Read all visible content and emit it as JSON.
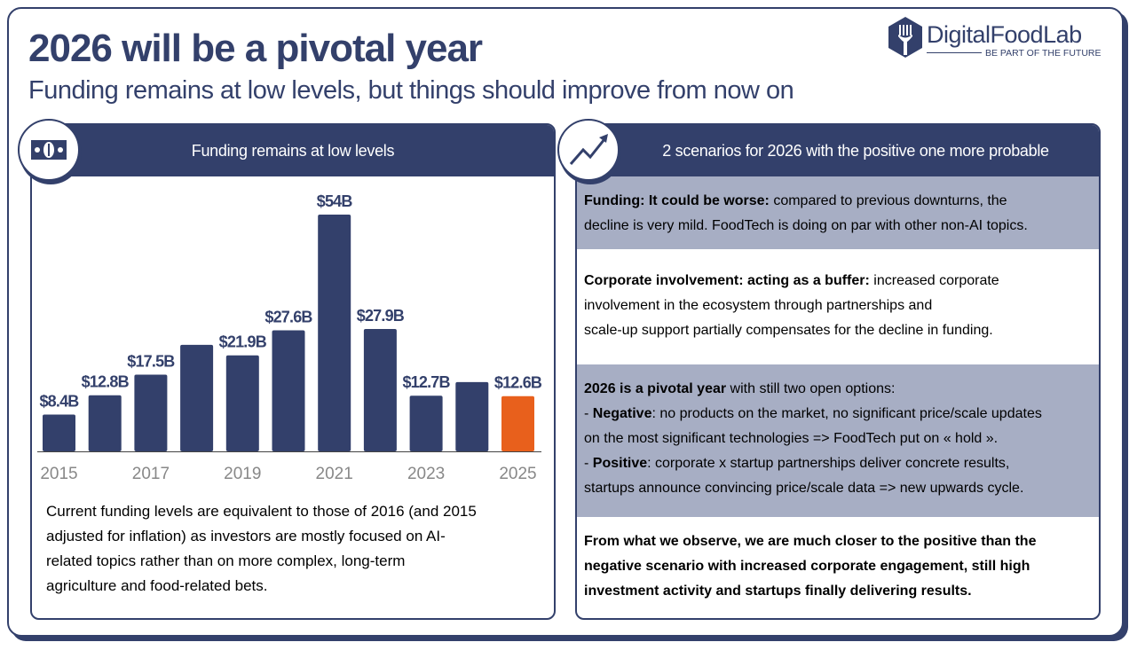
{
  "header": {
    "title": "2026 will be a pivotal year",
    "subtitle": "Funding remains at low levels, but things should improve from now on"
  },
  "logo": {
    "name": "DigitalFoodLab",
    "tagline": "BE PART OF THE FUTURE"
  },
  "colors": {
    "navy": "#33406b",
    "highlight": "#e8601c",
    "band": "#a7aec4"
  },
  "left_panel": {
    "icon": "money-bill-icon",
    "title": "Funding remains at low levels",
    "description_lines": [
      "Current funding levels are equivalent to those of 2016 (and 2015",
      "adjusted for inflation) as investors are mostly focused on AI-",
      "related topics rather than on more complex, long-term",
      "agriculture and food-related bets."
    ]
  },
  "chart_data": {
    "type": "bar",
    "title": "",
    "xlabel": "",
    "ylabel": "",
    "categories": [
      "2015",
      "2016",
      "2017",
      "2018",
      "2019",
      "2020",
      "2021",
      "2022",
      "2023",
      "2024",
      "2025"
    ],
    "tick_labels": [
      "2015",
      "",
      "2017",
      "",
      "2019",
      "",
      "2021",
      "",
      "2023",
      "",
      "2025"
    ],
    "values": [
      8.4,
      12.8,
      17.5,
      24.3,
      21.9,
      27.6,
      54,
      27.9,
      12.7,
      15.8,
      12.6
    ],
    "data_labels": [
      "$8.4B",
      "$12.8B",
      "$17.5B",
      "",
      "$21.9B",
      "$27.6B",
      "$54B",
      "$27.9B",
      "$12.7B",
      "",
      "$12.6B"
    ],
    "highlight_index": 10,
    "ylim": [
      0,
      60
    ],
    "grid": false
  },
  "right_panel": {
    "icon": "trend-up-icon",
    "title": "2 scenarios for 2026 with the positive one more probable",
    "sections": [
      {
        "style": "gray",
        "lines": [
          [
            {
              "b": true,
              "t": "Funding: It could be worse:"
            },
            {
              "b": false,
              "t": " compared to previous downturns, the"
            }
          ],
          [
            {
              "b": false,
              "t": "decline is very mild. FoodTech is doing on par with other non-AI topics."
            }
          ]
        ]
      },
      {
        "style": "white",
        "lines": [
          [
            {
              "b": true,
              "t": "Corporate involvement: acting as a buffer:"
            },
            {
              "b": false,
              "t": " increased corporate"
            }
          ],
          [
            {
              "b": false,
              "t": "involvement in the ecosystem through partnerships and"
            }
          ],
          [
            {
              "b": false,
              "t": "scale-up support partially compensates for the decline in funding."
            }
          ]
        ]
      },
      {
        "style": "gray",
        "lines": [
          [
            {
              "b": true,
              "t": "2026 is a pivotal year"
            },
            {
              "b": false,
              "t": " with still two open options:"
            }
          ],
          [
            {
              "b": false,
              "t": "- "
            },
            {
              "b": true,
              "t": "Negative"
            },
            {
              "b": false,
              "t": ": no products on the market, no significant price/scale updates"
            }
          ],
          [
            {
              "b": false,
              "t": "on the most significant technologies => FoodTech put on « hold »."
            }
          ],
          [
            {
              "b": false,
              "t": "- "
            },
            {
              "b": true,
              "t": "Positive"
            },
            {
              "b": false,
              "t": ": corporate x startup partnerships deliver concrete results,"
            }
          ],
          [
            {
              "b": false,
              "t": "startups announce convincing price/scale data => new upwards cycle."
            }
          ]
        ]
      },
      {
        "style": "white",
        "lines": [
          [
            {
              "b": true,
              "t": "From what we observe, we are much closer to the positive than the"
            }
          ],
          [
            {
              "b": true,
              "t": "negative scenario with increased corporate engagement, still high"
            }
          ],
          [
            {
              "b": true,
              "t": "investment activity and startups finally delivering results."
            }
          ]
        ]
      }
    ]
  }
}
